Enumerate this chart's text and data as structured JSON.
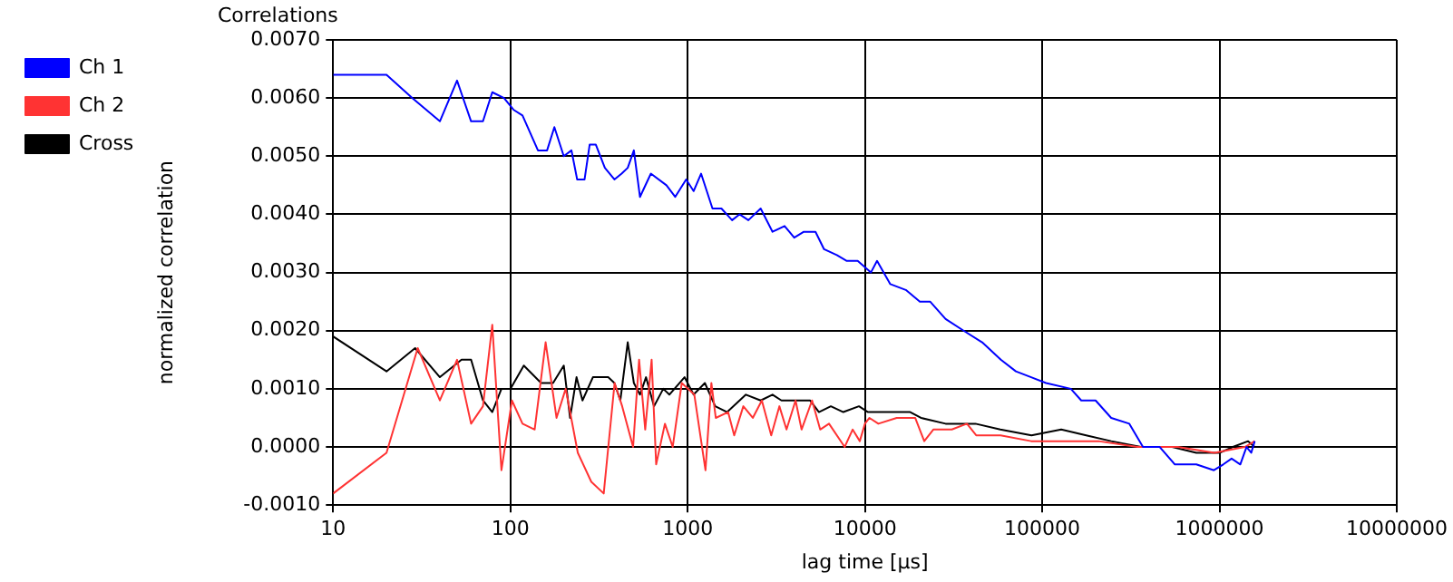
{
  "chart_data": {
    "type": "line",
    "title": "Correlations",
    "xlabel": "lag time [µs]",
    "ylabel": "normalized correlation",
    "log": "x",
    "grid": true,
    "legend": "top left",
    "marker": "none",
    "line_style": "solid",
    "xlim": [
      10,
      10000000
    ],
    "xticks": [
      10,
      100,
      1000,
      10000,
      100000,
      1000000,
      10000000
    ],
    "ylim": [
      -0.001,
      0.007
    ],
    "yticks": [
      {
        "value": -0.001,
        "label": "-0.0010"
      },
      {
        "value": 0,
        "label": "0.0000"
      },
      {
        "value": 0.001,
        "label": "0.0010"
      },
      {
        "value": 0.002,
        "label": "0.0020"
      },
      {
        "value": 0.003,
        "label": "0.0030"
      },
      {
        "value": 0.004,
        "label": "0.0040"
      },
      {
        "value": 0.005,
        "label": "0.0050"
      },
      {
        "value": 0.006,
        "label": "0.0060"
      },
      {
        "value": 0.007,
        "label": "0.0070"
      }
    ],
    "series": [
      {
        "name": "Ch 1",
        "color": "#0000ff",
        "x": [
          10,
          20,
          28,
          40,
          50,
          60,
          70,
          79,
          92,
          104,
          117,
          143,
          161,
          177,
          200,
          221,
          238,
          262,
          280,
          303,
          341,
          386,
          424,
          459,
          497,
          538,
          620,
          759,
          850,
          980,
          1080,
          1190,
          1380,
          1550,
          1780,
          1960,
          2200,
          2580,
          3010,
          3520,
          3990,
          4520,
          5260,
          5880,
          6940,
          7900,
          9100,
          10800,
          11700,
          13900,
          17000,
          20400,
          23300,
          28500,
          36000,
          45800,
          58400,
          71000,
          86600,
          105000,
          145000,
          166000,
          200000,
          245000,
          310000,
          370000,
          460000,
          560000,
          740000,
          930000,
          1050000,
          1170000,
          1310000,
          1420000,
          1510000,
          1580000
        ],
        "values": [
          0.0064,
          0.0064,
          0.006,
          0.0056,
          0.0063,
          0.0056,
          0.0056,
          0.0061,
          0.006,
          0.0058,
          0.0057,
          0.0051,
          0.0051,
          0.0055,
          0.005,
          0.0051,
          0.0046,
          0.0046,
          0.0052,
          0.0052,
          0.0048,
          0.0046,
          0.0047,
          0.0048,
          0.0051,
          0.0043,
          0.0047,
          0.0045,
          0.0043,
          0.0046,
          0.0044,
          0.0047,
          0.0041,
          0.0041,
          0.0039,
          0.004,
          0.0039,
          0.0041,
          0.0037,
          0.0038,
          0.0036,
          0.0037,
          0.0037,
          0.0034,
          0.0033,
          0.0032,
          0.0032,
          0.003,
          0.0032,
          0.0028,
          0.0027,
          0.0025,
          0.0025,
          0.0022,
          0.002,
          0.0018,
          0.0015,
          0.0013,
          0.0012,
          0.0011,
          0.001,
          0.0008,
          0.0008,
          0.0005,
          0.0004,
          0,
          0,
          -0.0003,
          -0.0003,
          -0.0004,
          -0.0003,
          -0.0002,
          -0.0003,
          0,
          -0.0001,
          0.0001
        ]
      },
      {
        "name": "Ch 2",
        "color": "#ff3333",
        "x": [
          10,
          20,
          30,
          40,
          50,
          60,
          70,
          79,
          89,
          102,
          117,
          137,
          158,
          182,
          205,
          240,
          286,
          336,
          387,
          427,
          492,
          532,
          576,
          626,
          664,
          744,
          823,
          926,
          1090,
          1260,
          1360,
          1440,
          1690,
          1830,
          2060,
          2330,
          2620,
          2960,
          3290,
          3610,
          4060,
          4390,
          5030,
          5590,
          6270,
          7680,
          8520,
          9350,
          10000,
          10600,
          11900,
          15100,
          19200,
          21600,
          24300,
          30900,
          37600,
          42400,
          58200,
          86600,
          128000,
          207000,
          346000,
          582000,
          936000,
          1390000,
          1580000
        ],
        "values": [
          -0.0008,
          -0.0001,
          0.0017,
          0.0008,
          0.0015,
          0.0004,
          0.0007,
          0.0021,
          -0.0004,
          0.0008,
          0.0004,
          0.0003,
          0.0018,
          0.0005,
          0.001,
          -0.0001,
          -0.0006,
          -0.0008,
          0.0011,
          0.0007,
          0,
          0.0015,
          0.0003,
          0.0015,
          -0.0003,
          0.0004,
          0,
          0.0011,
          0.0009,
          -0.0004,
          0.0011,
          0.0005,
          0.0006,
          0.0002,
          0.0007,
          0.0005,
          0.0008,
          0.0002,
          0.0007,
          0.0003,
          0.0008,
          0.0003,
          0.0008,
          0.0003,
          0.0004,
          0,
          0.0003,
          0.0001,
          0.0004,
          0.0005,
          0.0004,
          0.0005,
          0.0005,
          0.0001,
          0.0003,
          0.0003,
          0.0004,
          0.0002,
          0.0002,
          0.0001,
          0.0001,
          0.0001,
          0,
          0,
          -0.0001,
          0,
          0.0001
        ]
      },
      {
        "name": "Cross",
        "color": "#000000",
        "x": [
          10,
          20,
          29,
          40,
          53,
          60,
          70,
          79,
          89,
          100,
          119,
          149,
          174,
          200,
          217,
          236,
          255,
          292,
          356,
          386,
          417,
          459,
          497,
          538,
          582,
          646,
          728,
          788,
          960,
          1080,
          1250,
          1430,
          1670,
          2130,
          2580,
          3010,
          3380,
          4900,
          5500,
          6420,
          7550,
          9250,
          10400,
          11000,
          13900,
          18000,
          20700,
          28500,
          42000,
          58000,
          87000,
          128000,
          177000,
          245000,
          360000,
          540000,
          740000,
          1000000,
          1190000,
          1450000,
          1580000
        ],
        "values": [
          0.0019,
          0.0013,
          0.0017,
          0.0012,
          0.0015,
          0.0015,
          0.0008,
          0.0006,
          0.001,
          0.001,
          0.0014,
          0.0011,
          0.0011,
          0.0014,
          0.0005,
          0.0012,
          0.0008,
          0.0012,
          0.0012,
          0.0011,
          0.0008,
          0.0018,
          0.0011,
          0.0009,
          0.0012,
          0.0007,
          0.001,
          0.0009,
          0.0012,
          0.0009,
          0.0011,
          0.0007,
          0.0006,
          0.0009,
          0.0008,
          0.0009,
          0.0008,
          0.0008,
          0.0006,
          0.0007,
          0.0006,
          0.0007,
          0.0006,
          0.0006,
          0.0006,
          0.0006,
          0.0005,
          0.0004,
          0.0004,
          0.0003,
          0.0002,
          0.0003,
          0.0002,
          0.0001,
          0,
          0,
          -0.0001,
          -0.0001,
          0,
          0.0001,
          0
        ]
      }
    ]
  }
}
